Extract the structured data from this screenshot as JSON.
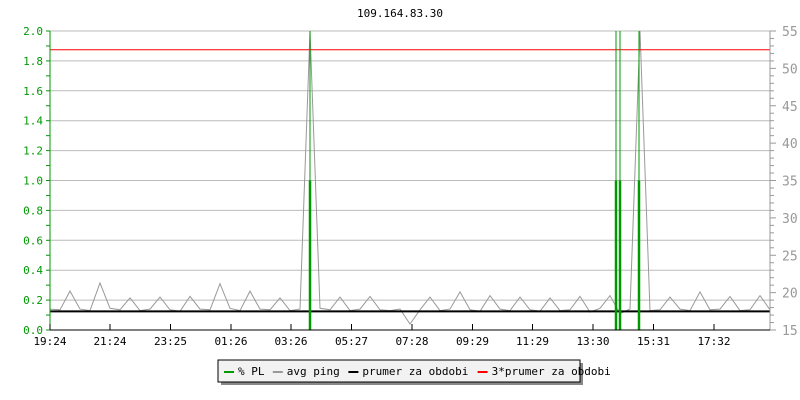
{
  "chart_data": {
    "type": "line",
    "title": "109.164.83.30",
    "x_ticks": [
      "19:24",
      "21:24",
      "23:25",
      "01:26",
      "03:26",
      "05:27",
      "07:28",
      "09:29",
      "11:29",
      "13:30",
      "15:31",
      "17:32"
    ],
    "x_range": [
      "19:24",
      "19:24"
    ],
    "y_left": {
      "range": [
        0,
        2.0
      ],
      "ticks": [
        "0.0",
        "0.2",
        "0.4",
        "0.6",
        "0.8",
        "1.0",
        "1.2",
        "1.4",
        "1.6",
        "1.8",
        "2.0"
      ],
      "color": "#009900"
    },
    "y_right": {
      "range": [
        15,
        55
      ],
      "ticks": [
        "15",
        "20",
        "25",
        "30",
        "35",
        "40",
        "45",
        "50",
        "55"
      ],
      "color": "#999999"
    },
    "grid": "horizontal",
    "legend_placement": "bottom",
    "series": [
      {
        "name": "% PL",
        "axis": "left",
        "color": "#009900",
        "points": [
          [
            "04:04",
            1.0
          ],
          [
            "14:16",
            1.0
          ],
          [
            "14:24",
            1.0
          ],
          [
            "15:02",
            1.0
          ]
        ]
      },
      {
        "name": "avg ping",
        "axis": "right",
        "color": "#999999",
        "times": [
          "19:24",
          "19:44",
          "20:04",
          "20:24",
          "20:44",
          "21:04",
          "21:24",
          "21:44",
          "22:04",
          "22:24",
          "22:44",
          "23:04",
          "23:24",
          "23:44",
          "00:04",
          "00:24",
          "00:44",
          "01:04",
          "01:24",
          "01:44",
          "02:04",
          "02:24",
          "02:44",
          "03:04",
          "03:24",
          "03:44",
          "04:04",
          "04:24",
          "04:44",
          "05:04",
          "05:24",
          "05:44",
          "06:04",
          "06:24",
          "06:44",
          "07:04",
          "07:24",
          "07:44",
          "08:04",
          "08:24",
          "08:44",
          "09:04",
          "09:24",
          "09:44",
          "10:04",
          "10:24",
          "10:44",
          "11:04",
          "11:24",
          "11:44",
          "12:04",
          "12:24",
          "12:44",
          "13:04",
          "13:24",
          "13:44",
          "14:04",
          "14:24",
          "14:44",
          "15:04",
          "15:24",
          "15:44",
          "16:04",
          "16:24",
          "16:44",
          "17:04",
          "17:24",
          "17:44",
          "18:04",
          "18:24",
          "18:44",
          "19:04",
          "19:24"
        ],
        "values": [
          17.8,
          17.7,
          20.2,
          17.8,
          17.6,
          21.3,
          17.9,
          17.7,
          19.3,
          17.6,
          17.8,
          19.4,
          17.7,
          17.5,
          19.5,
          17.8,
          17.7,
          21.2,
          17.9,
          17.6,
          20.2,
          17.8,
          17.7,
          19.3,
          17.6,
          17.8,
          60,
          17.9,
          17.7,
          19.4,
          17.6,
          17.8,
          19.5,
          17.7,
          17.6,
          17.8,
          15.8,
          17.7,
          19.4,
          17.6,
          17.8,
          20.1,
          17.7,
          17.5,
          19.6,
          17.8,
          17.6,
          19.4,
          17.7,
          17.5,
          19.3,
          17.6,
          17.7,
          19.5,
          17.4,
          17.9,
          19.6,
          17.2,
          17.8,
          60,
          17.6,
          17.7,
          19.4,
          17.8,
          17.6,
          20.1,
          17.7,
          17.8,
          19.5,
          17.6,
          17.7,
          19.6,
          17.7
        ]
      },
      {
        "name": "prumer za obdobi",
        "axis": "right",
        "color": "#000000",
        "value": 17.5
      },
      {
        "name": "3*prumer za obdobi",
        "axis": "right",
        "color": "#ff0000",
        "value": 52.5
      }
    ]
  }
}
